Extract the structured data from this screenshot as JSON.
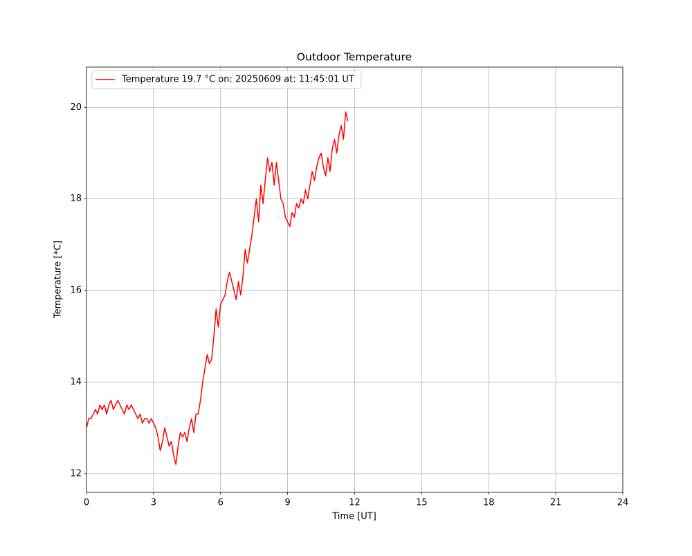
{
  "chart_data": {
    "type": "line",
    "title": "Outdoor Temperature",
    "xlabel": "Time [UT]",
    "ylabel": "Temperature [*C]",
    "x": [
      0,
      0.1,
      0.2,
      0.3,
      0.4,
      0.5,
      0.6,
      0.7,
      0.8,
      0.9,
      1,
      1.1,
      1.2,
      1.3,
      1.4,
      1.5,
      1.6,
      1.7,
      1.8,
      1.9,
      2,
      2.1,
      2.2,
      2.3,
      2.4,
      2.5,
      2.6,
      2.7,
      2.8,
      2.9,
      3,
      3.1,
      3.2,
      3.3,
      3.4,
      3.5,
      3.6,
      3.7,
      3.8,
      3.9,
      4,
      4.1,
      4.2,
      4.3,
      4.4,
      4.5,
      4.6,
      4.7,
      4.8,
      4.9,
      5,
      5.1,
      5.2,
      5.3,
      5.4,
      5.5,
      5.6,
      5.7,
      5.8,
      5.9,
      6,
      6.1,
      6.2,
      6.3,
      6.4,
      6.5,
      6.6,
      6.7,
      6.8,
      6.9,
      7,
      7.1,
      7.2,
      7.3,
      7.4,
      7.5,
      7.6,
      7.7,
      7.8,
      7.9,
      8,
      8.1,
      8.2,
      8.3,
      8.4,
      8.5,
      8.6,
      8.7,
      8.8,
      8.9,
      9,
      9.1,
      9.2,
      9.3,
      9.4,
      9.5,
      9.6,
      9.7,
      9.8,
      9.9,
      10,
      10.1,
      10.2,
      10.3,
      10.4,
      10.5,
      10.6,
      10.7,
      10.8,
      10.9,
      11,
      11.1,
      11.2,
      11.3,
      11.4,
      11.5,
      11.6,
      11.7
    ],
    "series": [
      {
        "name": "Temperature 19.7 °C on: 20250609 at: 11:45:01 UT",
        "color": "#ff0000",
        "values": [
          13.0,
          13.2,
          13.2,
          13.3,
          13.4,
          13.3,
          13.5,
          13.4,
          13.5,
          13.3,
          13.5,
          13.6,
          13.4,
          13.5,
          13.6,
          13.5,
          13.4,
          13.3,
          13.5,
          13.4,
          13.5,
          13.4,
          13.3,
          13.2,
          13.3,
          13.1,
          13.2,
          13.2,
          13.1,
          13.2,
          13.1,
          13.0,
          12.8,
          12.5,
          12.7,
          13.0,
          12.8,
          12.6,
          12.7,
          12.4,
          12.2,
          12.6,
          12.9,
          12.8,
          12.9,
          12.7,
          13.0,
          13.2,
          12.9,
          13.3,
          13.3,
          13.6,
          14.0,
          14.3,
          14.6,
          14.4,
          14.5,
          15.0,
          15.6,
          15.2,
          15.7,
          15.8,
          15.9,
          16.2,
          16.4,
          16.2,
          16.0,
          15.8,
          16.2,
          15.9,
          16.3,
          16.9,
          16.6,
          16.9,
          17.2,
          17.6,
          18.0,
          17.5,
          18.3,
          17.9,
          18.4,
          18.9,
          18.6,
          18.8,
          18.3,
          18.8,
          18.4,
          18.0,
          17.9,
          17.6,
          17.5,
          17.4,
          17.7,
          17.6,
          17.9,
          17.8,
          18.0,
          17.9,
          18.2,
          18.0,
          18.3,
          18.6,
          18.4,
          18.7,
          18.9,
          19.0,
          18.7,
          18.5,
          18.9,
          18.6,
          19.1,
          19.3,
          19.0,
          19.4,
          19.6,
          19.3,
          19.9,
          19.7
        ]
      }
    ],
    "xlim": [
      0,
      24
    ],
    "xticks": [
      0,
      3,
      6,
      9,
      12,
      15,
      18,
      21,
      24
    ],
    "ylim": [
      11.59,
      20.88
    ],
    "yticks": [
      12,
      14,
      16,
      18,
      20
    ],
    "grid": true,
    "legend": "upper left"
  }
}
